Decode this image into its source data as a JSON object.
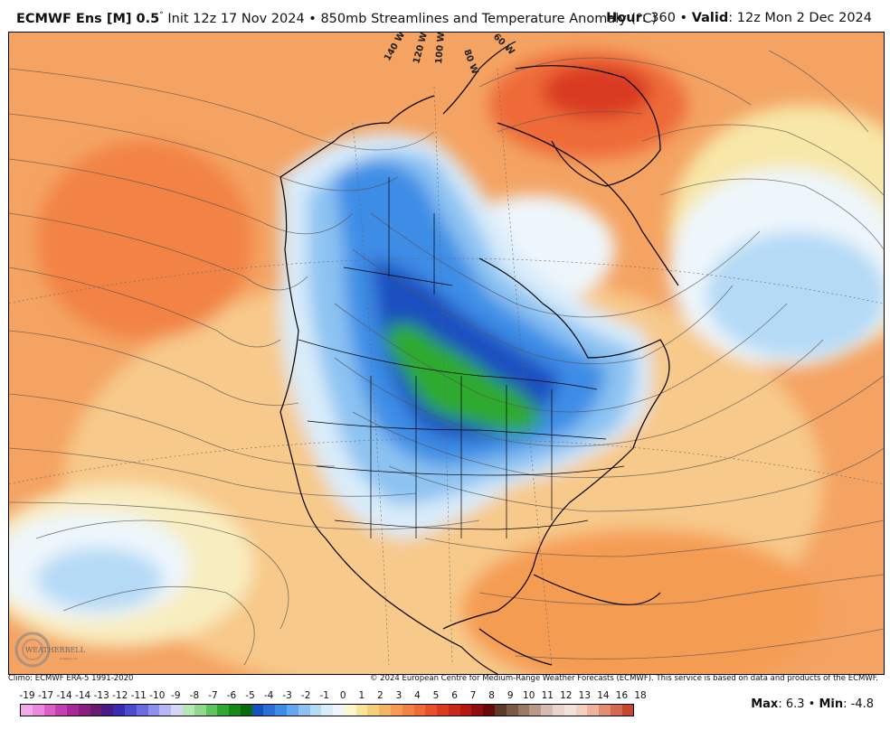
{
  "header": {
    "model": "ECMWF Ens [M] 0.5",
    "deg": "°",
    "init": " Init 12z 17 Nov 2024 • 850mb Streamlines and Temperature Anomaly (°C)",
    "hour_label": "Hour",
    "hour_value": ": 360 • ",
    "valid_label": "Valid",
    "valid_value": ": 12z Mon 2 Dec 2024"
  },
  "map": {
    "longitude_labels": [
      "140 W",
      "120 W",
      "100 W",
      "80 W",
      "60 W"
    ],
    "logo_text": "WEATHERBELL",
    "logo_sub": "Analytics LLC"
  },
  "credits": {
    "climo": "Climo: ECMWF ERA-5 1991-2020",
    "copyright": "© 2024 European Centre for Medium-Range Weather Forecasts (ECMWF). This service is based on data and products of the ECMWF."
  },
  "colorbar": {
    "labels": [
      "-19",
      "-17",
      "-14",
      "-14",
      "-13",
      "-12",
      "-11",
      "-10",
      "-9",
      "-8",
      "-7",
      "-6",
      "-5",
      "-4",
      "-3",
      "-2",
      "-1",
      "0",
      "1",
      "2",
      "3",
      "4",
      "5",
      "6",
      "7",
      "8",
      "9",
      "10",
      "11",
      "12",
      "13",
      "14",
      "16",
      "18"
    ],
    "colors": [
      "#f3a8e8",
      "#ec88dd",
      "#dc5fc8",
      "#c43fb1",
      "#a7289a",
      "#8a1d82",
      "#6b1a6c",
      "#4a1b86",
      "#3b2ab0",
      "#4a4ad0",
      "#6b6be0",
      "#8f8ff0",
      "#b6b6f5",
      "#d5d5f8",
      "#b5e8b5",
      "#8ed98e",
      "#5ec45e",
      "#2faa2f",
      "#168a16",
      "#0b6a0b",
      "#1a4fc0",
      "#2a6ed6",
      "#3d8de6",
      "#62a8ee",
      "#8cc3f2",
      "#b5daf6",
      "#d9ecfa",
      "#eef6fb",
      "#fbf7c8",
      "#f7e59b",
      "#f5cf7a",
      "#f6b563",
      "#f59c52",
      "#f28344",
      "#ee6a37",
      "#e6512b",
      "#d93a20",
      "#c82818",
      "#b01812",
      "#8e0e0e",
      "#6b0808",
      "#5a3a2a",
      "#7a5a44",
      "#9a7a64",
      "#b89a86",
      "#d4bcae",
      "#e8d6cc",
      "#f1e3dc",
      "#f3cfc0",
      "#eeb2a0",
      "#e28d76",
      "#d5684f",
      "#c5472f"
    ],
    "max_label": "Max",
    "max_value": ": 6.3 • ",
    "min_label": "Min",
    "min_value": ": -4.8"
  }
}
